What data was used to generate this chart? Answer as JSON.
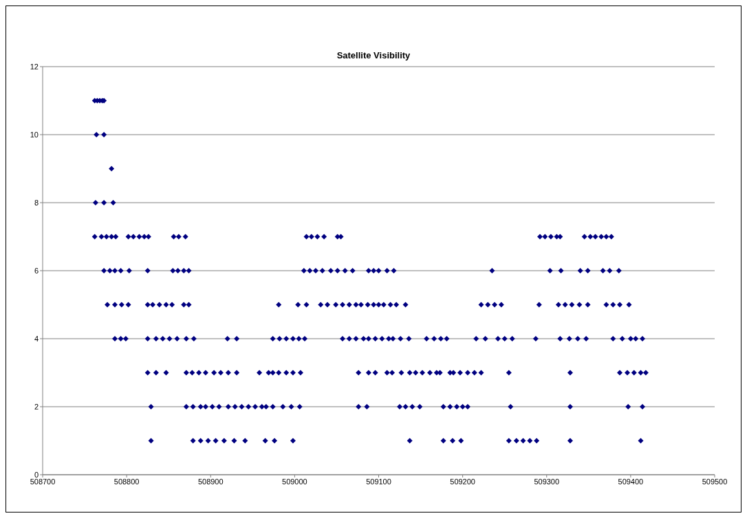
{
  "chart_data": {
    "type": "scatter",
    "title": "Satellite Visibility",
    "x": [
      508762,
      508765,
      508768,
      508771,
      508773,
      508764,
      508773,
      508782,
      508763,
      508773,
      508784,
      508762,
      508770,
      508776,
      508782,
      508787,
      508802,
      508808,
      508815,
      508821,
      508826,
      508856,
      508862,
      508870,
      509014,
      509020,
      509027,
      509035,
      509051,
      509055,
      509292,
      509298,
      509305,
      509312,
      509316,
      509345,
      509352,
      509358,
      509365,
      509371,
      509377,
      508773,
      508780,
      508786,
      508793,
      508803,
      508825,
      508855,
      508861,
      508868,
      508874,
      509011,
      509018,
      509025,
      509033,
      509043,
      509051,
      509060,
      509069,
      509088,
      509094,
      509100,
      509110,
      509118,
      509235,
      509304,
      509317,
      509340,
      509349,
      509367,
      509375,
      509386,
      508777,
      508786,
      508794,
      508802,
      508825,
      508831,
      508839,
      508847,
      508854,
      508868,
      508874,
      508981,
      509004,
      509014,
      509031,
      509039,
      509049,
      509057,
      509065,
      509073,
      509079,
      509087,
      509094,
      509100,
      509106,
      509114,
      509121,
      509132,
      509222,
      509230,
      509238,
      509246,
      509291,
      509314,
      509322,
      509330,
      509339,
      509349,
      509371,
      509379,
      509387,
      509398,
      508786,
      508793,
      508799,
      508825,
      508835,
      508843,
      508851,
      508860,
      508871,
      508880,
      508920,
      508931,
      508974,
      508982,
      508990,
      508998,
      509005,
      509012,
      509057,
      509065,
      509073,
      509082,
      509088,
      509096,
      509104,
      509112,
      509117,
      509126,
      509136,
      509157,
      509166,
      509174,
      509181,
      509216,
      509227,
      509242,
      509250,
      509259,
      509287,
      509316,
      509327,
      509337,
      509347,
      509379,
      509390,
      509400,
      509406,
      509414,
      508825,
      508835,
      508847,
      508871,
      508878,
      508886,
      508894,
      508904,
      508912,
      508921,
      508931,
      508958,
      508969,
      508974,
      508981,
      508990,
      508998,
      509007,
      509076,
      509088,
      509096,
      509110,
      509116,
      509127,
      509137,
      509144,
      509152,
      509161,
      509169,
      509173,
      509185,
      509189,
      509197,
      509206,
      509214,
      509222,
      509255,
      509328,
      509387,
      509396,
      509404,
      509412,
      509418,
      508829,
      508871,
      508879,
      508888,
      508894,
      508902,
      508910,
      508921,
      508929,
      508937,
      508945,
      508953,
      508961,
      508966,
      508974,
      508986,
      508996,
      509006,
      509076,
      509086,
      509125,
      509132,
      509140,
      509149,
      509177,
      509185,
      509193,
      509200,
      509206,
      509257,
      509328,
      509397,
      509414,
      508829,
      508879,
      508888,
      508897,
      508906,
      508916,
      508928,
      508941,
      508965,
      508976,
      508998,
      509137,
      509177,
      509188,
      509198,
      509255,
      509264,
      509272,
      509280,
      509288,
      509328,
      509412
    ],
    "values": [
      11,
      11,
      11,
      11,
      11,
      10,
      10,
      9,
      8,
      8,
      8,
      7,
      7,
      7,
      7,
      7,
      7,
      7,
      7,
      7,
      7,
      7,
      7,
      7,
      7,
      7,
      7,
      7,
      7,
      7,
      7,
      7,
      7,
      7,
      7,
      7,
      7,
      7,
      7,
      7,
      7,
      6,
      6,
      6,
      6,
      6,
      6,
      6,
      6,
      6,
      6,
      6,
      6,
      6,
      6,
      6,
      6,
      6,
      6,
      6,
      6,
      6,
      6,
      6,
      6,
      6,
      6,
      6,
      6,
      6,
      6,
      6,
      5,
      5,
      5,
      5,
      5,
      5,
      5,
      5,
      5,
      5,
      5,
      5,
      5,
      5,
      5,
      5,
      5,
      5,
      5,
      5,
      5,
      5,
      5,
      5,
      5,
      5,
      5,
      5,
      5,
      5,
      5,
      5,
      5,
      5,
      5,
      5,
      5,
      5,
      5,
      5,
      5,
      5,
      4,
      4,
      4,
      4,
      4,
      4,
      4,
      4,
      4,
      4,
      4,
      4,
      4,
      4,
      4,
      4,
      4,
      4,
      4,
      4,
      4,
      4,
      4,
      4,
      4,
      4,
      4,
      4,
      4,
      4,
      4,
      4,
      4,
      4,
      4,
      4,
      4,
      4,
      4,
      4,
      4,
      4,
      4,
      4,
      4,
      4,
      4,
      4,
      3,
      3,
      3,
      3,
      3,
      3,
      3,
      3,
      3,
      3,
      3,
      3,
      3,
      3,
      3,
      3,
      3,
      3,
      3,
      3,
      3,
      3,
      3,
      3,
      3,
      3,
      3,
      3,
      3,
      3,
      3,
      3,
      3,
      3,
      3,
      3,
      3,
      3,
      3,
      3,
      3,
      3,
      3,
      2,
      2,
      2,
      2,
      2,
      2,
      2,
      2,
      2,
      2,
      2,
      2,
      2,
      2,
      2,
      2,
      2,
      2,
      2,
      2,
      2,
      2,
      2,
      2,
      2,
      2,
      2,
      2,
      2,
      2,
      2,
      2,
      2,
      1,
      1,
      1,
      1,
      1,
      1,
      1,
      1,
      1,
      1,
      1,
      1,
      1,
      1,
      1,
      1,
      1,
      1,
      1,
      1,
      1,
      1
    ],
    "color": "#000080",
    "marker": "diamond",
    "grid": "y",
    "xlim": [
      508700,
      509500
    ],
    "xticks": [
      508700,
      508800,
      508900,
      509000,
      509100,
      509200,
      509300,
      509400,
      509500
    ],
    "ylim": [
      0,
      12
    ],
    "yticks": [
      0,
      2,
      4,
      6,
      8,
      10,
      12
    ]
  }
}
